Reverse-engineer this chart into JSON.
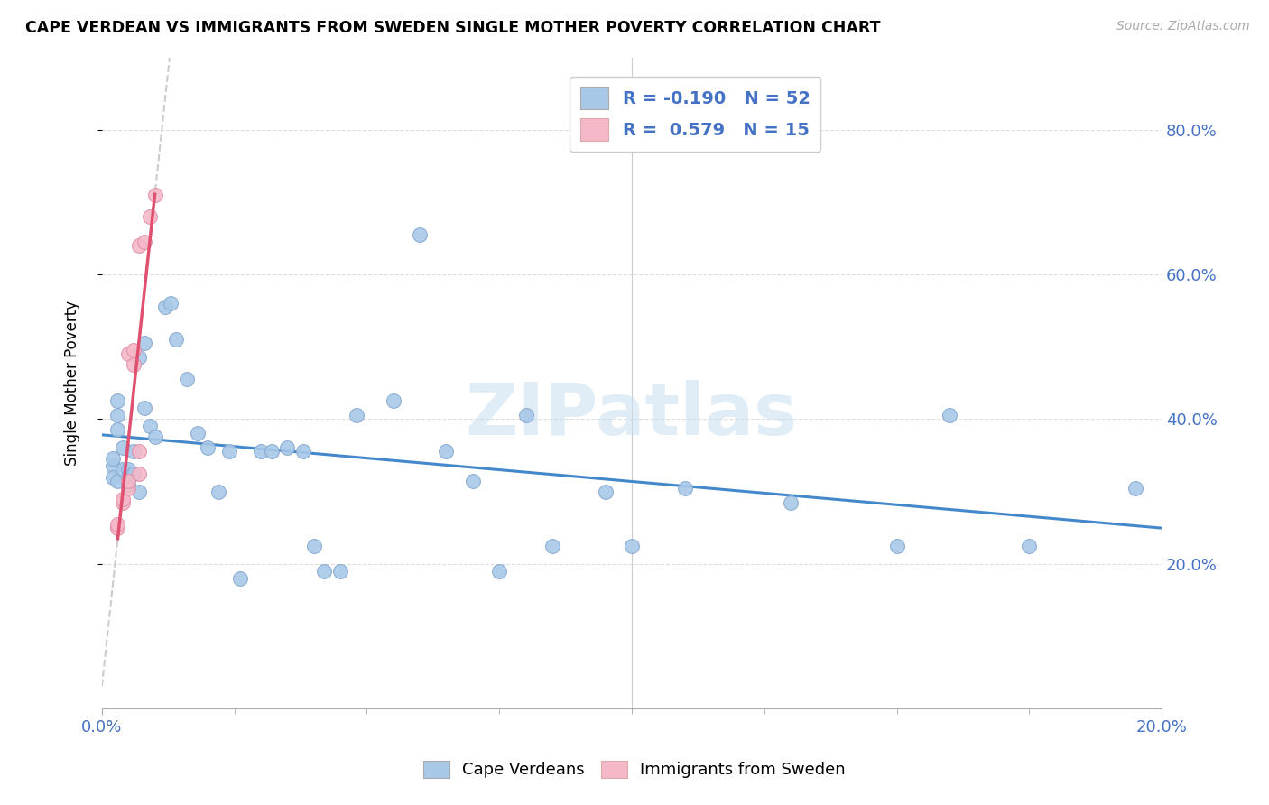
{
  "title": "CAPE VERDEAN VS IMMIGRANTS FROM SWEDEN SINGLE MOTHER POVERTY CORRELATION CHART",
  "source": "Source: ZipAtlas.com",
  "ylabel": "Single Mother Poverty",
  "legend_label1": "Cape Verdeans",
  "legend_label2": "Immigrants from Sweden",
  "R1": "-0.190",
  "N1": "52",
  "R2": "0.579",
  "N2": "15",
  "blue_color": "#a8c8e8",
  "pink_color": "#f4b8c8",
  "trend_blue": "#4488cc",
  "trend_pink": "#e05070",
  "trend_gray_dash": "#cccccc",
  "watermark": "ZIPatlas",
  "blue_points_x": [
    0.002,
    0.002,
    0.002,
    0.003,
    0.003,
    0.003,
    0.003,
    0.004,
    0.004,
    0.005,
    0.005,
    0.005,
    0.006,
    0.006,
    0.007,
    0.007,
    0.008,
    0.008,
    0.009,
    0.01,
    0.012,
    0.013,
    0.014,
    0.016,
    0.018,
    0.02,
    0.022,
    0.024,
    0.026,
    0.03,
    0.032,
    0.035,
    0.038,
    0.04,
    0.042,
    0.045,
    0.048,
    0.055,
    0.06,
    0.065,
    0.07,
    0.075,
    0.08,
    0.085,
    0.095,
    0.1,
    0.11,
    0.13,
    0.15,
    0.16,
    0.175,
    0.195
  ],
  "blue_points_y": [
    0.335,
    0.345,
    0.32,
    0.385,
    0.405,
    0.425,
    0.315,
    0.36,
    0.33,
    0.31,
    0.32,
    0.33,
    0.325,
    0.355,
    0.3,
    0.485,
    0.505,
    0.415,
    0.39,
    0.375,
    0.555,
    0.56,
    0.51,
    0.455,
    0.38,
    0.36,
    0.3,
    0.355,
    0.18,
    0.355,
    0.355,
    0.36,
    0.355,
    0.225,
    0.19,
    0.19,
    0.405,
    0.425,
    0.655,
    0.355,
    0.315,
    0.19,
    0.405,
    0.225,
    0.3,
    0.225,
    0.305,
    0.285,
    0.225,
    0.405,
    0.225,
    0.305
  ],
  "pink_points_x": [
    0.003,
    0.003,
    0.004,
    0.004,
    0.005,
    0.005,
    0.005,
    0.006,
    0.006,
    0.007,
    0.007,
    0.007,
    0.008,
    0.009,
    0.01
  ],
  "pink_points_y": [
    0.25,
    0.255,
    0.285,
    0.29,
    0.305,
    0.315,
    0.49,
    0.475,
    0.495,
    0.325,
    0.355,
    0.64,
    0.645,
    0.68,
    0.71
  ],
  "xlim": [
    0.0,
    0.2
  ],
  "ylim": [
    0.0,
    0.9
  ],
  "x_ticks_minor": [
    0.025,
    0.05,
    0.075,
    0.1,
    0.125,
    0.15,
    0.175
  ],
  "y_ticks": [
    0.2,
    0.4,
    0.6,
    0.8
  ],
  "vertical_line_x": 0.1
}
